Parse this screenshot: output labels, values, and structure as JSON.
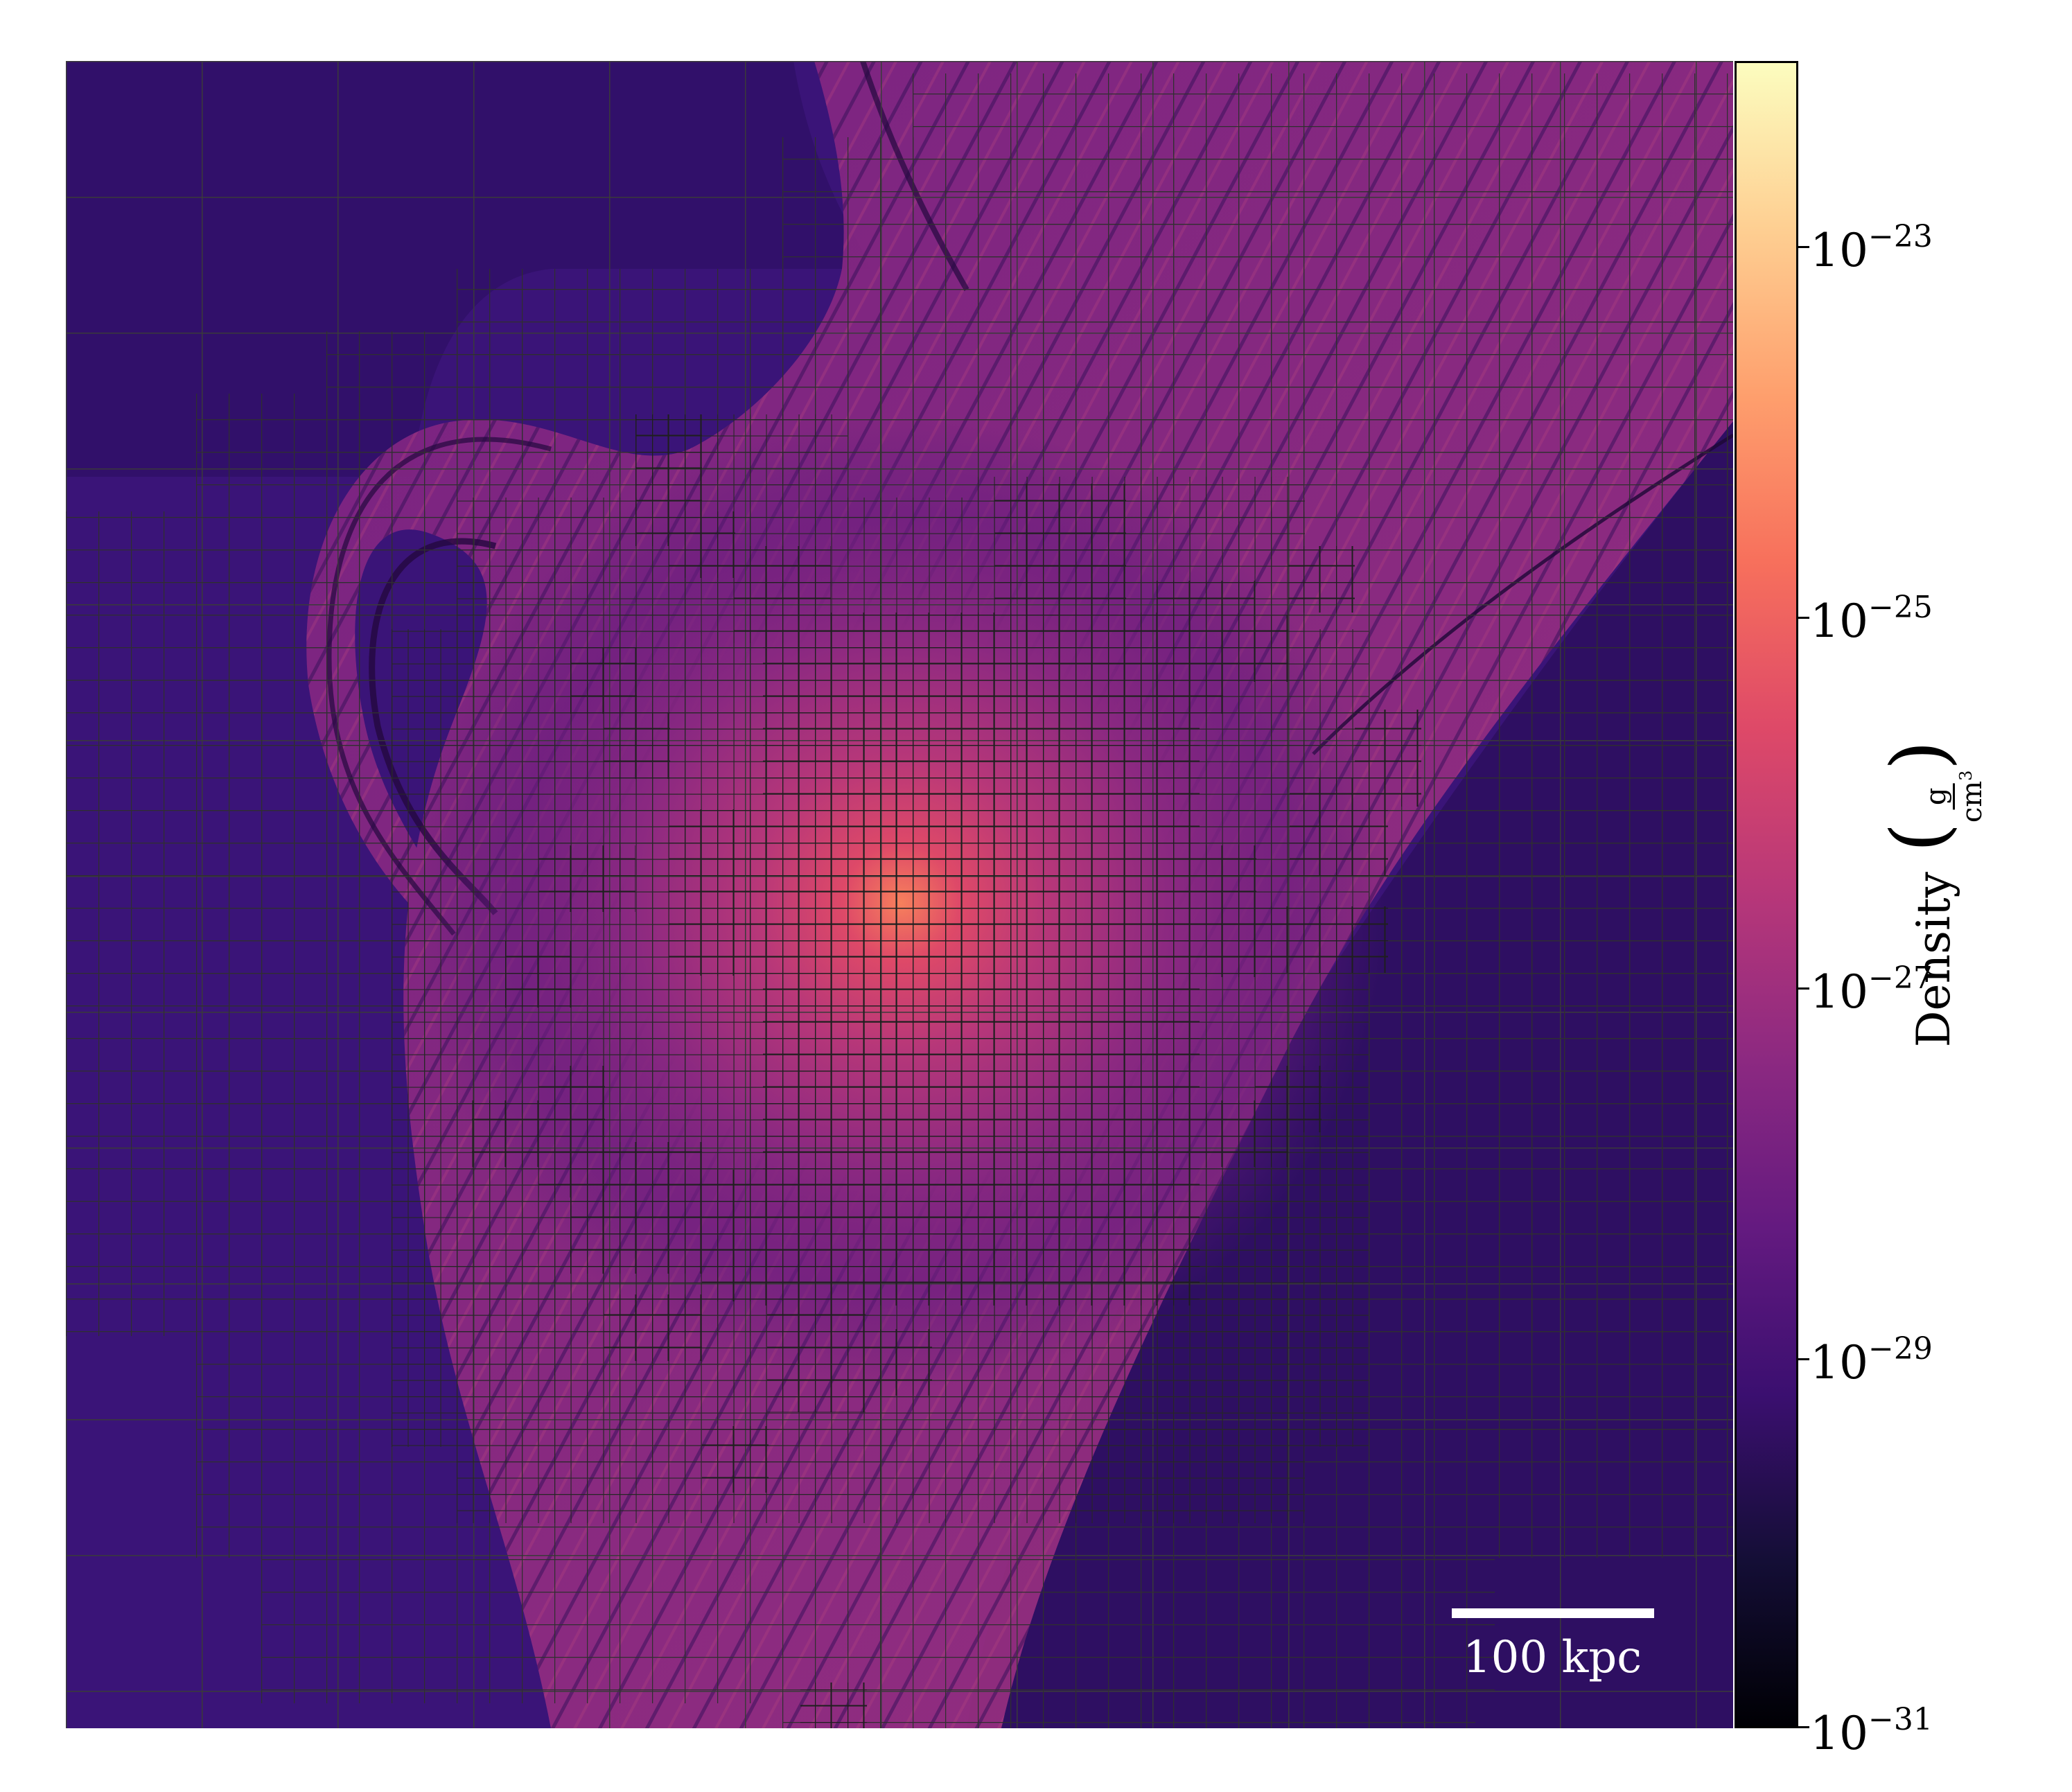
{
  "image": {
    "colormap": "magma",
    "field": "gas density projection with AMR grid overlay"
  },
  "colorbar": {
    "label": "Density",
    "unit_numerator": "g",
    "unit_denominator": "cm",
    "unit_denominator_exponent": "3",
    "scale": "log",
    "range": [
      1e-31,
      1e-22
    ],
    "ticks": [
      {
        "base": "10",
        "exp": "−23"
      },
      {
        "base": "10",
        "exp": "−25"
      },
      {
        "base": "10",
        "exp": "−27"
      },
      {
        "base": "10",
        "exp": "−29"
      },
      {
        "base": "10",
        "exp": "−31"
      }
    ],
    "colors": [
      "#000004",
      "#140e36",
      "#3b0f70",
      "#641a80",
      "#8c2981",
      "#b73779",
      "#de4968",
      "#f7705c",
      "#fe9f6d",
      "#fecf92",
      "#fcfdbf"
    ]
  },
  "scalebar": {
    "label": "100 kpc",
    "color": "#ffffff"
  },
  "grid": {
    "line_color": "#2e2e2e",
    "levels": 4
  }
}
